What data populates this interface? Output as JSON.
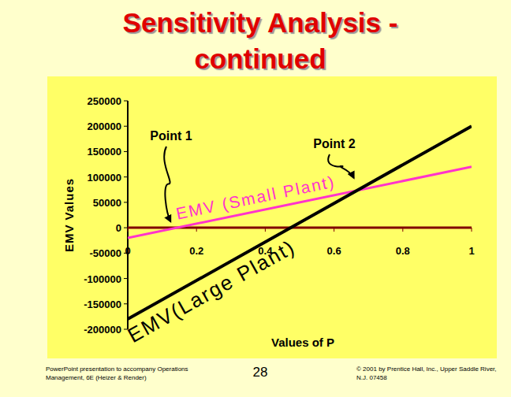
{
  "chart_data": {
    "type": "line",
    "title": "Sensitivity Analysis - continued",
    "x_label": "Values of P",
    "y_label": "EMV Values",
    "x": [
      0,
      1
    ],
    "series": [
      {
        "name": "EMV (Small Plant)",
        "color": "#ff33cc",
        "values": [
          -20000,
          120000
        ]
      },
      {
        "name": "EMV(Large Plant)",
        "color": "#000000",
        "values": [
          -180000,
          200000
        ]
      }
    ],
    "xlim": [
      0,
      1
    ],
    "ylim": [
      -200000,
      250000
    ],
    "xticks": [
      0,
      0.2,
      0.4,
      0.6,
      0.8,
      1
    ],
    "yticks": [
      -200000,
      -150000,
      -100000,
      -50000,
      0,
      50000,
      100000,
      150000,
      200000,
      250000
    ],
    "grid": false,
    "annotations": [
      "Point 1",
      "Point 2"
    ]
  },
  "footer": {
    "left": "PowerPoint presentation to accompany Operations Management, 6E (Heizer & Render)",
    "page": "28",
    "right": "© 2001 by Prentice Hall, Inc., Upper Saddle River, N.J. 07458"
  }
}
